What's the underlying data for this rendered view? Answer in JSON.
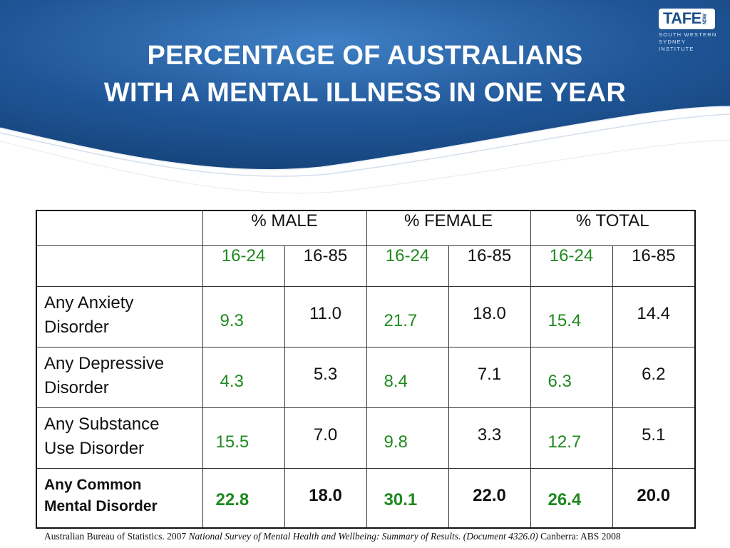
{
  "logo": {
    "brand": "TAFE",
    "brand_sub": "NSW",
    "line1": "SOUTH WESTERN",
    "line2": "SYDNEY INSTITUTE"
  },
  "title": {
    "line1": "PERCENTAGE OF AUSTRALIANS",
    "line2": "WITH A MENTAL ILLNESS IN ONE YEAR"
  },
  "table": {
    "group_headers": [
      "% MALE",
      "%  FEMALE",
      "% TOTAL"
    ],
    "age_headers": [
      "16-24",
      "16-85",
      "16-24",
      "16-85",
      "16-24",
      "16-85"
    ],
    "rows": [
      {
        "label1": "Any Anxiety",
        "label2": "Disorder",
        "values": [
          "9.3",
          "11.0",
          "21.7",
          "18.0",
          "15.4",
          "14.4"
        ]
      },
      {
        "label1": "Any Depressive",
        "label2": "Disorder",
        "values": [
          "4.3",
          "5.3",
          "8.4",
          "7.1",
          "6.3",
          "6.2"
        ]
      },
      {
        "label1": "Any Substance",
        "label2": "Use Disorder",
        "values": [
          "15.5",
          "7.0",
          "9.8",
          "3.3",
          "12.7",
          "5.1"
        ]
      },
      {
        "label1": "Any Common",
        "label2": "Mental Disorder",
        "values": [
          "22.8",
          "18.0",
          "30.1",
          "22.0",
          "26.4",
          "20.0"
        ]
      }
    ]
  },
  "footer": {
    "prefix": "Australian Bureau of Statistics. 2007 ",
    "italic": "National Survey of Mental Health and Wellbeing: Summary of Results. (Document 4326.0)",
    "suffix": " Canberra: ABS 2008"
  },
  "colors": {
    "accent_green": "#1f8a1f",
    "header_blue": "#1d4f8a"
  }
}
